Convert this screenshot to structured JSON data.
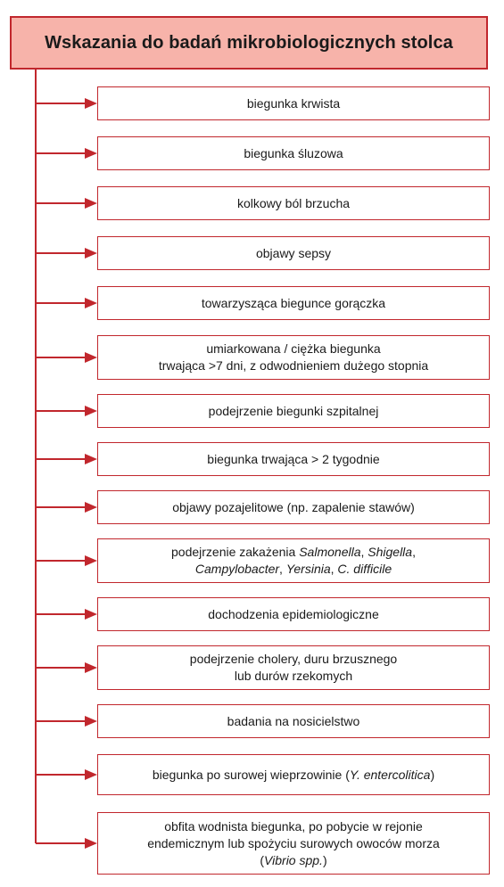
{
  "title": "Wskazania do badań mikrobiologicznych stolca",
  "colors": {
    "accent": "#c1272d",
    "header_fill": "#f7b3aa"
  },
  "items": [
    {
      "l1": "biegunka krwista"
    },
    {
      "l1": "biegunka śluzowa"
    },
    {
      "l1": "kolkowy ból brzucha"
    },
    {
      "l1": "objawy sepsy"
    },
    {
      "l1": "towarzysząca biegunce gorączka"
    },
    {
      "l1": "umiarkowana / ciężka biegunka",
      "l2": "trwająca >7 dni, z odwodnieniem dużego stopnia"
    },
    {
      "l1": "podejrzenie biegunki szpitalnej"
    },
    {
      "l1": "biegunka trwająca > 2 tygodnie"
    },
    {
      "l1": "objawy pozajelitowe (np. zapalenie stawów)"
    },
    {
      "l1_a": "podejrzenie zakażenia ",
      "l1_b": "Salmonella",
      "l1_c": ", ",
      "l1_d": "Shigella",
      "l1_e": ",",
      "l2_a": "Campylobacter",
      "l2_b": ", ",
      "l2_c": "Yersinia",
      "l2_d": ", ",
      "l2_e": "C. difficile"
    },
    {
      "l1": "dochodzenia epidemiologiczne"
    },
    {
      "l1": "podejrzenie cholery, duru brzusznego",
      "l2": "lub durów rzekomych"
    },
    {
      "l1": "badania na nosicielstwo"
    },
    {
      "l1_a": "biegunka po surowej wieprzowinie (",
      "l1_b": "Y. entercolitica",
      "l1_c": ")"
    },
    {
      "l1": "obfita wodnista biegunka, po pobycie w rejonie",
      "l2": "endemicznym lub spożyciu surowych owoców morza",
      "l3_a": "(",
      "l3_b": "Vibrio spp.",
      "l3_c": ")"
    }
  ]
}
